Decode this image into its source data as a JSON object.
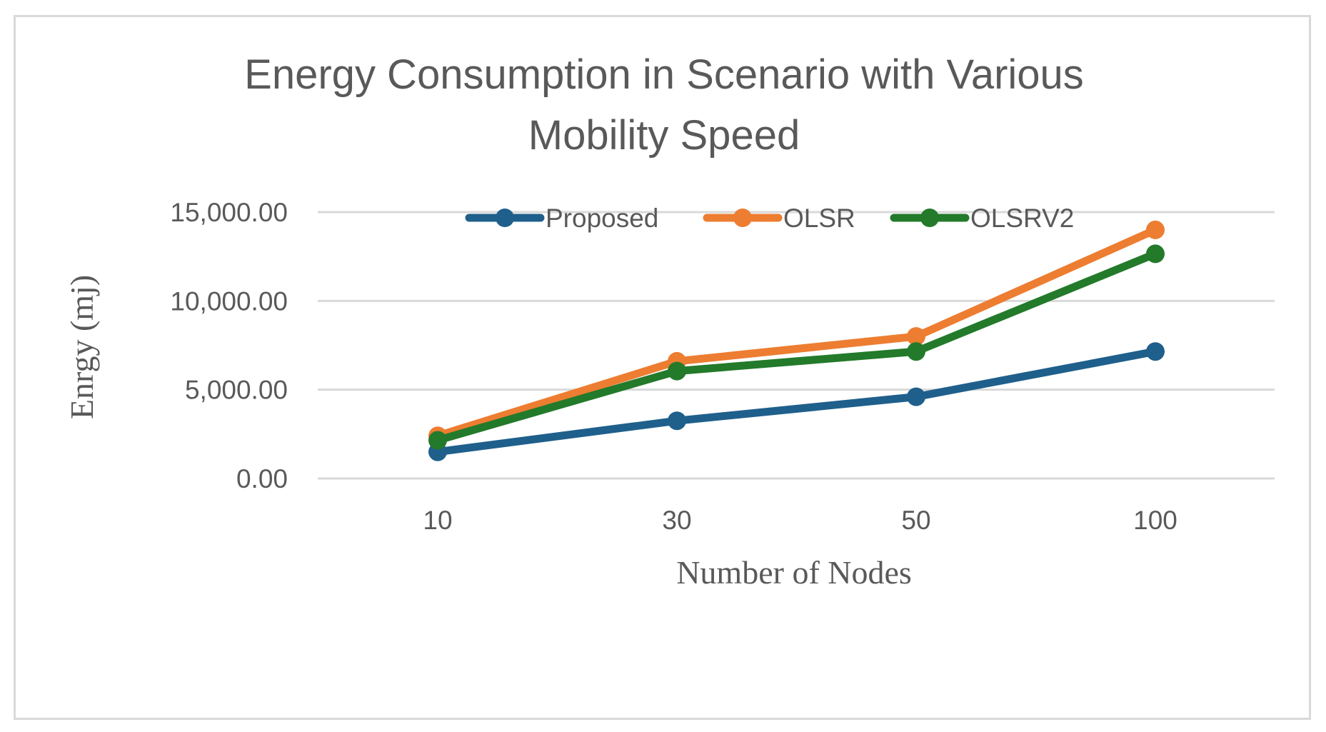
{
  "chart_data": {
    "type": "line",
    "title_lines": [
      "Energy Consumption in Scenario with Various",
      "Mobility Speed"
    ],
    "xlabel": "Number of Nodes",
    "ylabel": "Enrgy (mj)",
    "categories": [
      "10",
      "30",
      "50",
      "100"
    ],
    "ylim": [
      0,
      15000
    ],
    "yticks": [
      0,
      5000,
      10000,
      15000
    ],
    "ytick_labels": [
      "0.00",
      "5,000.00",
      "10,000.00",
      "15,000.00"
    ],
    "legend_position": "top",
    "grid": true,
    "series": [
      {
        "name": "Proposed",
        "color": "#1f5f8b",
        "values": [
          1500,
          3250,
          4600,
          7150
        ]
      },
      {
        "name": "OLSR",
        "color": "#ed7d31",
        "values": [
          2400,
          6600,
          8000,
          14000
        ]
      },
      {
        "name": "OLSRV2",
        "color": "#237a2a",
        "values": [
          2150,
          6050,
          7150,
          12650
        ]
      }
    ]
  }
}
